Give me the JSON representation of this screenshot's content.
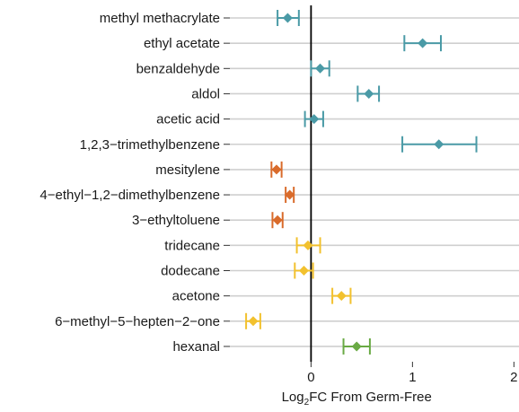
{
  "chart_data": {
    "type": "scatter",
    "title": "",
    "xlabel": {
      "prefix": "Log",
      "subscript": "2",
      "suffix": "FC From Germ-Free"
    },
    "ylabel": "",
    "xlim": [
      -0.8,
      2.05
    ],
    "xticks": [
      0,
      1,
      2
    ],
    "grid": "horizontal",
    "legend": "none",
    "zero_line": true,
    "colors": {
      "teal": "#4a9aa6",
      "orange": "#d96b2b",
      "yellow": "#f2c12e",
      "green": "#6aaa45",
      "grid": "#cfcfcf",
      "axis": "#000000"
    },
    "points": [
      {
        "label": "methyl methacrylate",
        "value": -0.23,
        "low": -0.33,
        "high": -0.12,
        "color": "teal"
      },
      {
        "label": "ethyl acetate",
        "value": 1.1,
        "low": 0.92,
        "high": 1.28,
        "color": "teal"
      },
      {
        "label": "benzaldehyde",
        "value": 0.09,
        "low": 0.0,
        "high": 0.18,
        "color": "teal"
      },
      {
        "label": "aldol",
        "value": 0.57,
        "low": 0.46,
        "high": 0.67,
        "color": "teal"
      },
      {
        "label": "acetic acid",
        "value": 0.03,
        "low": -0.06,
        "high": 0.12,
        "color": "teal"
      },
      {
        "label": "1,2,3−trimethylbenzene",
        "value": 1.26,
        "low": 0.9,
        "high": 1.63,
        "color": "teal"
      },
      {
        "label": "mesitylene",
        "value": -0.34,
        "low": -0.39,
        "high": -0.29,
        "color": "orange"
      },
      {
        "label": "4−ethyl−1,2−dimethylbenzene",
        "value": -0.21,
        "low": -0.25,
        "high": -0.17,
        "color": "orange"
      },
      {
        "label": "3−ethyltoluene",
        "value": -0.33,
        "low": -0.38,
        "high": -0.28,
        "color": "orange"
      },
      {
        "label": "tridecane",
        "value": -0.03,
        "low": -0.14,
        "high": 0.09,
        "color": "yellow"
      },
      {
        "label": "dodecane",
        "value": -0.07,
        "low": -0.16,
        "high": 0.02,
        "color": "yellow"
      },
      {
        "label": "acetone",
        "value": 0.3,
        "low": 0.21,
        "high": 0.39,
        "color": "yellow"
      },
      {
        "label": "6−methyl−5−hepten−2−one",
        "value": -0.57,
        "low": -0.64,
        "high": -0.5,
        "color": "yellow"
      },
      {
        "label": "hexanal",
        "value": 0.45,
        "low": 0.32,
        "high": 0.58,
        "color": "green"
      }
    ]
  }
}
